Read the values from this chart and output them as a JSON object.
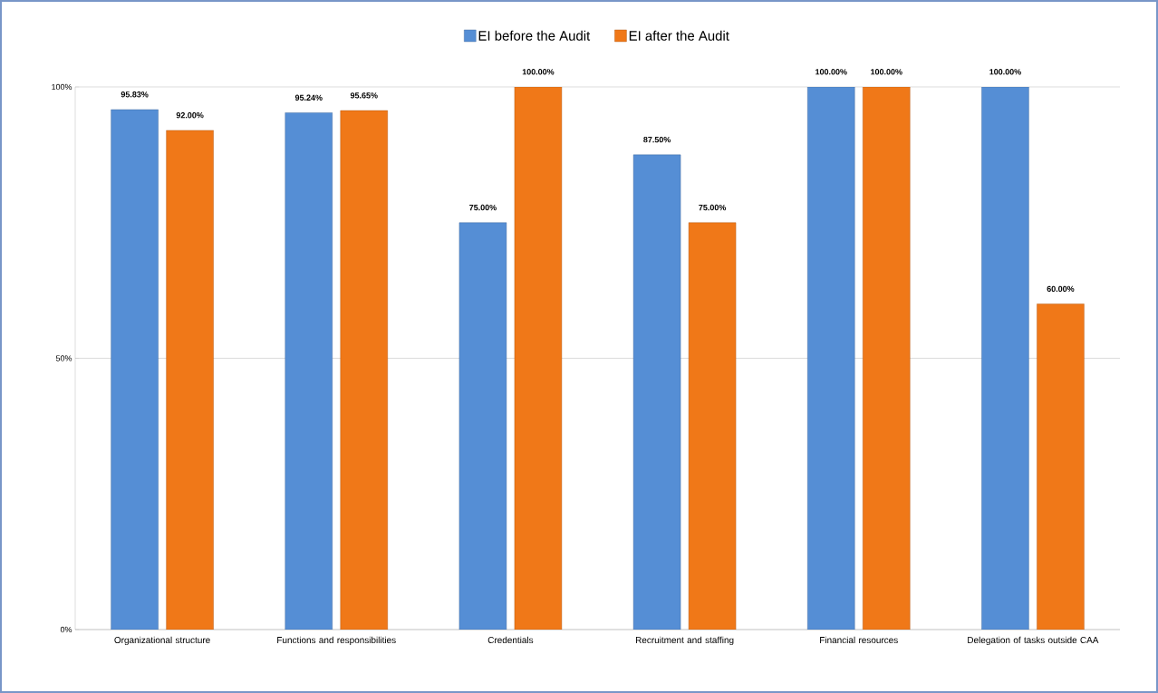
{
  "chart_data": {
    "type": "bar",
    "categories": [
      "Organizational structure",
      "Functions and responsibilities",
      "Credentials",
      "Recruitment and staffing",
      "Financial resources",
      "Delegation of tasks outside CAA"
    ],
    "series": [
      {
        "name": "EI before the Audit",
        "color": "#558ed5",
        "values": [
          95.83,
          95.24,
          75.0,
          87.5,
          100.0,
          100.0
        ],
        "value_labels": [
          "95.83%",
          "95.24%",
          "75.00%",
          "87.50%",
          "100.00%",
          "100.00%"
        ]
      },
      {
        "name": "EI after the Audit",
        "color": "#f07818",
        "values": [
          92.0,
          95.65,
          100.0,
          75.0,
          100.0,
          60.0
        ],
        "value_labels": [
          "92.00%",
          "95.65%",
          "100.00%",
          "75.00%",
          "100.00%",
          "60.00%"
        ]
      }
    ],
    "ylim": [
      0,
      100
    ],
    "yticks": [
      {
        "value": 0,
        "label": "0%"
      },
      {
        "value": 50,
        "label": "50%"
      },
      {
        "value": 100,
        "label": "100%"
      }
    ],
    "grid": "y",
    "legend": "top"
  }
}
